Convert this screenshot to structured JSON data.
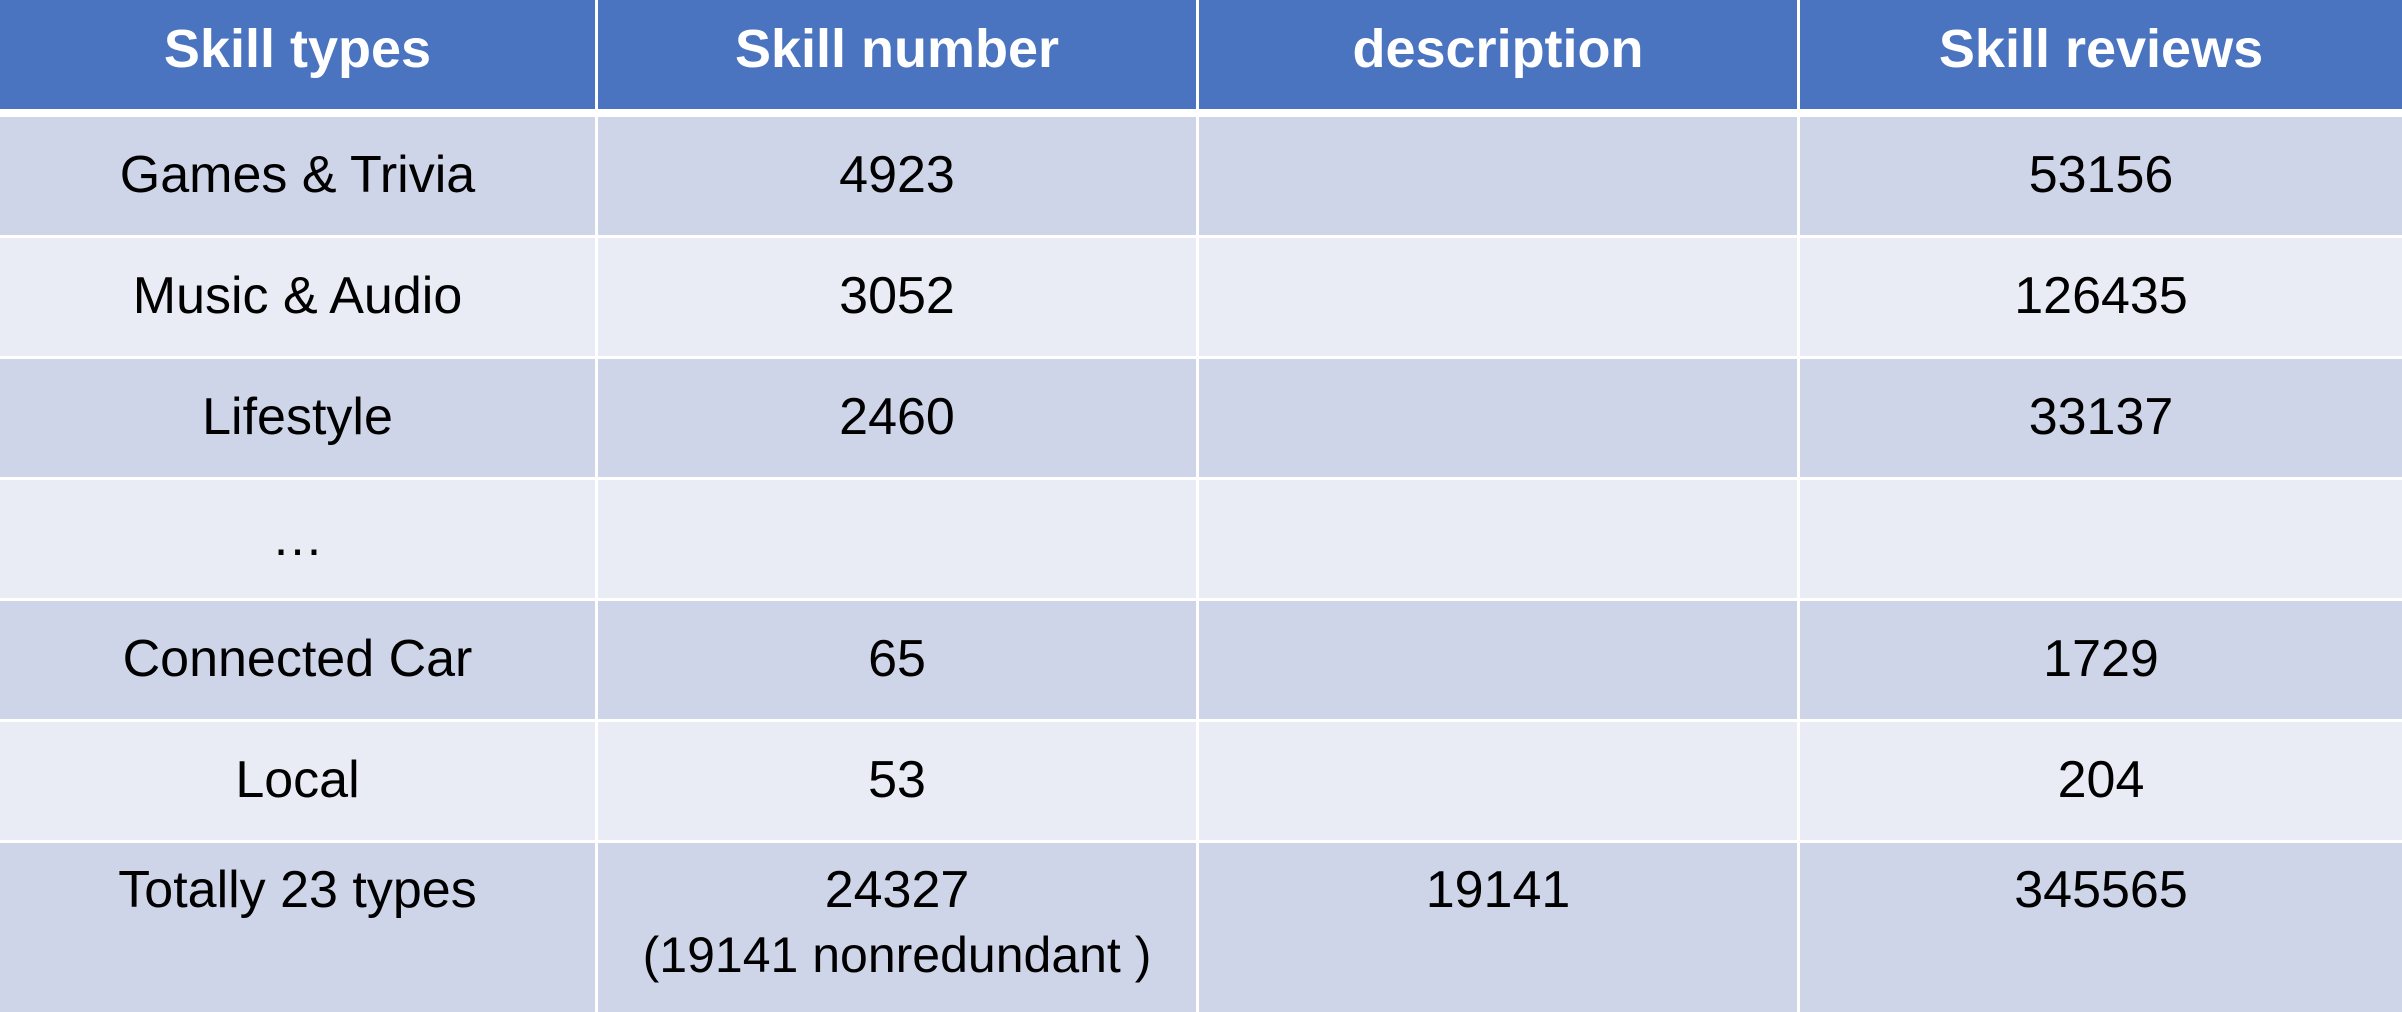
{
  "table": {
    "headers": [
      "Skill types",
      "Skill number",
      "description",
      "Skill reviews"
    ],
    "rows": [
      {
        "type": "Games & Trivia",
        "number": "4923",
        "description": "",
        "reviews": "53156"
      },
      {
        "type": "Music & Audio",
        "number": "3052",
        "description": "",
        "reviews": "126435"
      },
      {
        "type": "Lifestyle",
        "number": "2460",
        "description": "",
        "reviews": "33137"
      },
      {
        "type": "…",
        "number": "",
        "description": "",
        "reviews": ""
      },
      {
        "type": "Connected Car",
        "number": "65",
        "description": "",
        "reviews": "1729"
      },
      {
        "type": "Local",
        "number": "53",
        "description": "",
        "reviews": "204"
      }
    ],
    "total": {
      "type": "Totally 23 types",
      "number": "24327",
      "number_note": "(19141 nonredundant )",
      "description": "19141",
      "reviews": "345565"
    }
  },
  "colors": {
    "header_bg": "#4a73c0",
    "row_dark": "#cfd5e8",
    "row_light": "#e9ecf5"
  }
}
